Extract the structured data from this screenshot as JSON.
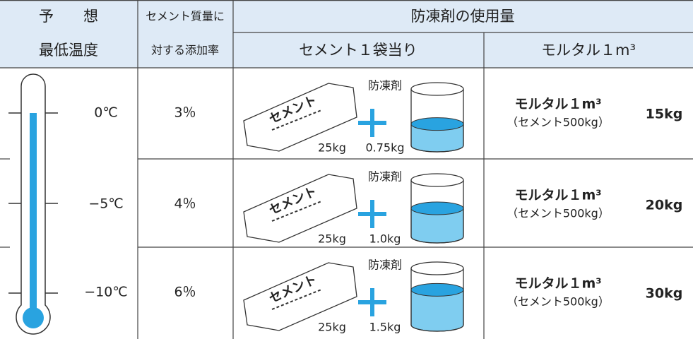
{
  "header": {
    "row1": [
      "予　　想",
      "セメント質量に",
      "防凍剤の使用量"
    ],
    "row2": [
      "最低温度",
      "対する添加率",
      "セメント１袋当り",
      "モルタル１m³"
    ]
  },
  "bag_label": "セメント",
  "rows": [
    {
      "temperature": "0℃",
      "rate": "3％",
      "bag_weight": "25kg",
      "agent_label": "防凍剤",
      "agent_amount": "0.75kg",
      "mortar_label": "モルタル１m³",
      "mortar_note": "（セメント500kg）",
      "mortar_amount": "15kg"
    },
    {
      "temperature": "−5℃",
      "rate": "4％",
      "bag_weight": "25kg",
      "agent_label": "防凍剤",
      "agent_amount": "1.0kg",
      "mortar_label": "モルタル１m³",
      "mortar_note": "（セメント500kg）",
      "mortar_amount": "20kg"
    },
    {
      "temperature": "−10℃",
      "rate": "6％",
      "bag_weight": "25kg",
      "agent_label": "防凍剤",
      "agent_amount": "1.5kg",
      "mortar_label": "モルタル１m³",
      "mortar_note": "（セメント500kg）",
      "mortar_amount": "30kg"
    }
  ]
}
